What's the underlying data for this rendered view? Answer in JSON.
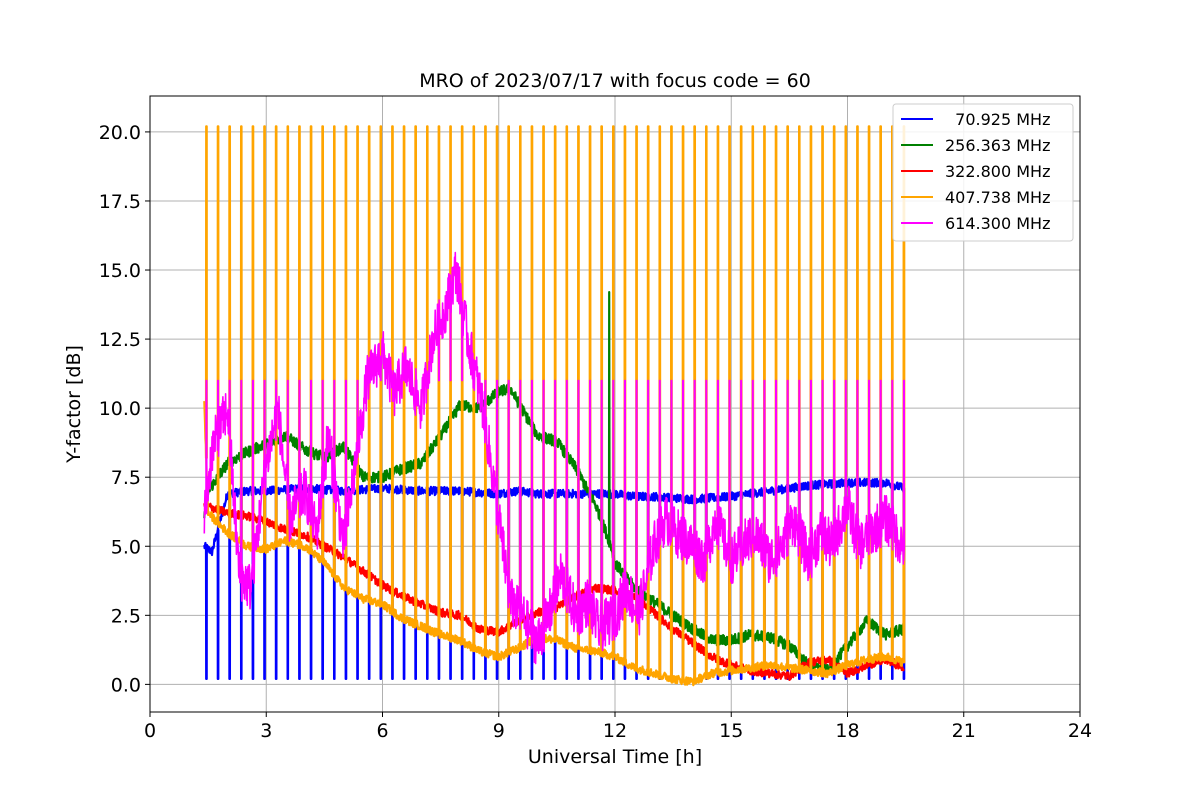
{
  "chart_data": {
    "type": "line",
    "title": "MRO of 2023/07/17 with focus code = 60",
    "xlabel": "Universal Time [h]",
    "ylabel": "Y-factor [dB]",
    "xlim": [
      0,
      24
    ],
    "ylim": [
      -1.0,
      21.3
    ],
    "xticks": [
      0,
      3,
      6,
      9,
      12,
      15,
      18,
      21,
      24
    ],
    "yticks": [
      0.0,
      2.5,
      5.0,
      7.5,
      10.0,
      12.5,
      15.0,
      17.5,
      20.0
    ],
    "xtick_labels": [
      "0",
      "3",
      "6",
      "9",
      "12",
      "15",
      "18",
      "21",
      "24"
    ],
    "ytick_labels": [
      "0.0",
      "2.5",
      "5.0",
      "7.5",
      "10.0",
      "12.5",
      "15.0",
      "17.5",
      "20.0"
    ],
    "grid": true,
    "legend_position": "top-right",
    "cycle": {
      "start_h": 1.45,
      "end_h": 19.45,
      "period_h": 0.3
    },
    "series": [
      {
        "name": "  70.925 MHz",
        "color": "#0000ff",
        "spike_h": 0.2,
        "x": [
          1.4,
          1.6,
          2,
          2.5,
          3,
          4,
          5,
          6,
          7,
          8,
          9,
          9.5,
          10,
          11,
          12,
          12.5,
          13,
          14,
          15,
          16,
          17,
          18,
          19,
          19.45
        ],
        "y": [
          5.0,
          4.8,
          6.9,
          7.0,
          7.0,
          7.1,
          7.0,
          7.1,
          7.0,
          7.0,
          6.9,
          7.0,
          6.9,
          6.9,
          6.9,
          6.8,
          6.8,
          6.7,
          6.8,
          7.0,
          7.2,
          7.3,
          7.3,
          7.1
        ]
      },
      {
        "name": "256.363 MHz",
        "color": "#008000",
        "x": [
          1.4,
          1.5,
          2,
          2.5,
          3,
          3.5,
          4,
          4.5,
          5,
          5.5,
          6,
          6.5,
          7,
          7.5,
          8,
          8.5,
          9,
          9.3,
          10,
          10.5,
          11,
          11.5,
          11.9,
          12,
          12.5,
          13,
          13.5,
          14,
          14.5,
          15,
          15.5,
          16,
          16.5,
          17,
          17.5,
          18,
          18.5,
          19,
          19.45
        ],
        "y": [
          6.0,
          7.0,
          8.0,
          8.4,
          8.7,
          9.0,
          8.5,
          8.2,
          8.6,
          7.5,
          7.5,
          7.8,
          8.0,
          9.0,
          10.1,
          10.0,
          10.6,
          10.7,
          9.0,
          8.8,
          7.8,
          6.5,
          5.0,
          4.4,
          3.5,
          3.0,
          2.5,
          2.0,
          1.6,
          1.6,
          1.8,
          1.7,
          1.4,
          0.7,
          0.5,
          1.4,
          2.3,
          1.8,
          2.0
        ]
      },
      {
        "name": "322.800 MHz",
        "color": "#ff0000",
        "x": [
          1.4,
          2,
          2.5,
          3,
          3.5,
          4,
          4.5,
          5,
          5.5,
          6,
          6.5,
          7,
          7.5,
          8,
          8.5,
          9,
          9.5,
          10,
          10.5,
          11,
          11.5,
          12,
          12.5,
          13,
          13.5,
          14,
          14.5,
          15,
          15.5,
          16,
          16.5,
          17,
          17.5,
          18,
          18.5,
          19,
          19.45
        ],
        "y": [
          6.5,
          6.2,
          6.1,
          5.9,
          5.6,
          5.4,
          5.0,
          4.6,
          4.1,
          3.6,
          3.2,
          2.9,
          2.6,
          2.5,
          2.0,
          1.9,
          2.3,
          2.6,
          2.8,
          3.2,
          3.5,
          3.4,
          3.2,
          2.6,
          2.0,
          1.5,
          1.0,
          0.7,
          0.5,
          0.4,
          0.3,
          0.8,
          0.9,
          0.4,
          0.7,
          0.9,
          0.6
        ]
      },
      {
        "name": "407.738 MHz",
        "color": "#ffa500",
        "spike_h": 20.2,
        "x": [
          1.4,
          1.5,
          2,
          2.5,
          3,
          3.5,
          4,
          4.5,
          5,
          5.5,
          6,
          6.5,
          7,
          7.5,
          8,
          8.5,
          9,
          9.5,
          10,
          10.5,
          11,
          11.5,
          12,
          12.5,
          13,
          13.5,
          14,
          14.5,
          15,
          15.5,
          16,
          16.5,
          17,
          17.5,
          18,
          18.5,
          19,
          19.45
        ],
        "y": [
          10.2,
          6.2,
          5.5,
          5.0,
          4.9,
          5.2,
          5.0,
          4.4,
          3.5,
          3.1,
          2.9,
          2.4,
          2.1,
          1.8,
          1.6,
          1.2,
          1.0,
          1.3,
          1.7,
          1.6,
          1.3,
          1.2,
          1.0,
          0.6,
          0.4,
          0.2,
          0.1,
          0.4,
          0.5,
          0.6,
          0.7,
          0.6,
          0.5,
          0.4,
          0.7,
          0.9,
          1.0,
          0.8
        ]
      },
      {
        "name": "614.300 MHz",
        "color": "#ff00ff",
        "spike_h": 11.0,
        "x": [
          1.4,
          1.6,
          2,
          2.3,
          2.6,
          3,
          3.3,
          3.6,
          4,
          4.3,
          4.6,
          5,
          5.3,
          5.6,
          6,
          6.3,
          6.6,
          7,
          7.3,
          7.6,
          7.9,
          8.2,
          8.6,
          9,
          9.3,
          9.6,
          10,
          10.3,
          10.6,
          11,
          11.3,
          11.6,
          12,
          12.3,
          12.6,
          13,
          13.3,
          13.6,
          14,
          14.3,
          14.6,
          15,
          15.3,
          15.6,
          16,
          16.3,
          16.6,
          17,
          17.3,
          17.6,
          18,
          18.3,
          18.6,
          19,
          19.45
        ],
        "y": [
          6.0,
          8.5,
          10.0,
          4.0,
          3.5,
          8.0,
          10.0,
          6.0,
          7.0,
          5.5,
          9.0,
          5.0,
          8.0,
          11.0,
          12.0,
          10.5,
          11.5,
          10.0,
          12.5,
          13.5,
          15.0,
          12.5,
          10.0,
          6.0,
          3.0,
          2.5,
          1.5,
          2.5,
          4.0,
          2.5,
          3.0,
          2.0,
          2.5,
          3.5,
          2.5,
          5.0,
          6.0,
          5.5,
          5.0,
          4.5,
          6.0,
          4.5,
          5.0,
          5.5,
          4.5,
          5.0,
          6.0,
          4.5,
          5.5,
          5.0,
          6.5,
          5.0,
          5.5,
          6.0,
          5.0
        ]
      }
    ]
  }
}
